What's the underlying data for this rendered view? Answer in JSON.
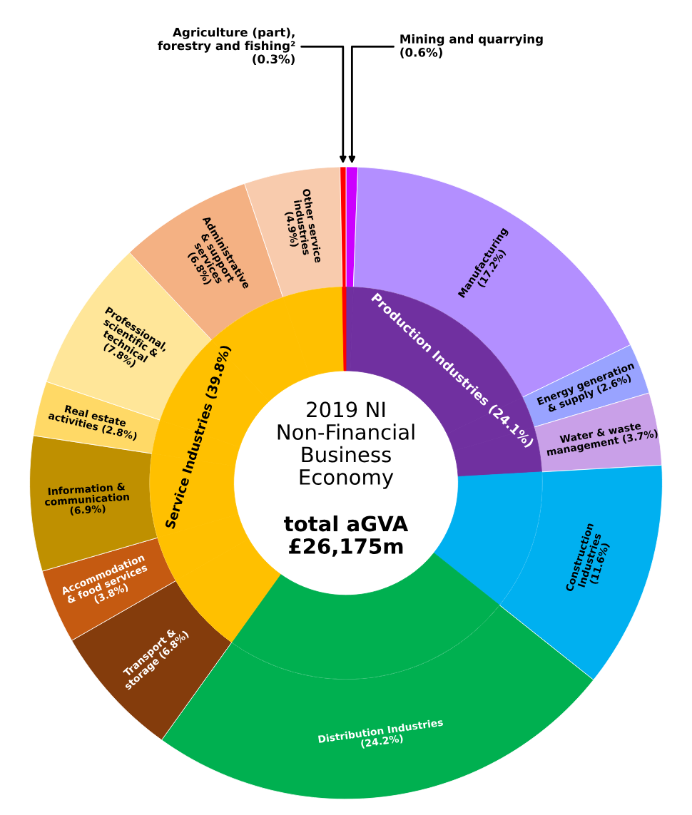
{
  "chart_data": {
    "type": "donut",
    "categories": [
      "Mining and quarrying\n(0.6%)",
      "Manufacturing\n(17.2%)",
      "Energy generation\n& supply (2.6%)",
      "Water & waste\nmanagement (3.7%)",
      "Construction\nIndustries\n(11.6%)",
      "Distribution Industries\n(24.2%)",
      "Transport &\nstorage (6.8%)",
      "Accommodation\n& food services\n(3.8%)",
      "Information &\ncommunication\n(6.9%)",
      "Real estate\nactivities (2.8%)",
      "Professional,\nscientific &\ntechnical\n(7.8%)",
      "Administrative\n& support\nservices\n(6.8%)",
      "Other service\nindustries\n(4.9%)",
      "Agriculture (part),\nforestry and fishing²\n(0.3%)"
    ],
    "series": [
      {
        "values": [
          0.6,
          17.2,
          2.6,
          3.7,
          11.6,
          24.2,
          6.8,
          3.8,
          6.9,
          2.8,
          7.8,
          6.8,
          4.9,
          0.3
        ],
        "colors": [
          "#cc00ff",
          "#b38fff",
          "#99a3ff",
          "#c9a0e8",
          "#00b0f0",
          "#00b050",
          "#843c0c",
          "#c55a11",
          "#bf9000",
          "#ffd966",
          "#ffe699",
          "#f4b183",
          "#f8cbad",
          "#ff0000"
        ]
      },
      {
        "values": [
          0.6,
          17.2,
          2.6,
          3.7,
          11.6,
          24.2,
          6.8,
          3.8,
          6.9,
          2.8,
          7.8,
          6.8,
          4.9,
          0.3
        ],
        "colors": [
          "#7030a0",
          "#7030a0",
          "#7030a0",
          "#7030a0",
          "#00b0f0",
          "#00b050",
          "#ffc000",
          "#ffc000",
          "#ffc000",
          "#ffc000",
          "#ffc000",
          "#ffc000",
          "#ffc000",
          "#ff0000"
        ]
      }
    ],
    "annotations": [
      "2019 NI\nNon-Financial\nBusiness\nEconomy",
      "total aGVA\n£26,175m",
      "Production Industries (24.1%)",
      "Service Industries (39.8%)"
    ]
  }
}
